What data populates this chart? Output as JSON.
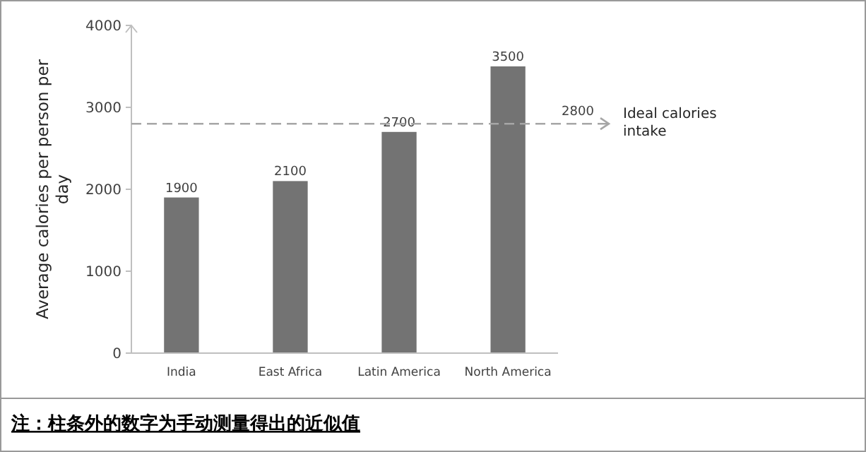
{
  "chart_data": {
    "type": "bar",
    "ylabel": "Average calories per person per day",
    "categories": [
      "India",
      "East Africa",
      "Latin America",
      "North America"
    ],
    "values": [
      1900,
      2100,
      2700,
      3500
    ],
    "color": "#737373",
    "ylim": [
      0,
      4000
    ],
    "yticks": [
      0,
      1000,
      2000,
      3000,
      4000
    ],
    "grid": false,
    "data_labels": true,
    "ref_lines": [
      {
        "axis": "y",
        "value": 2800,
        "label": "Ideal calories intake",
        "color": "#a6a6a6",
        "line_style": "dashed"
      }
    ],
    "annotations": [
      {
        "text": "2800",
        "y": 2800
      },
      "注：柱条外的数字为手动测量得出的近似值"
    ]
  }
}
